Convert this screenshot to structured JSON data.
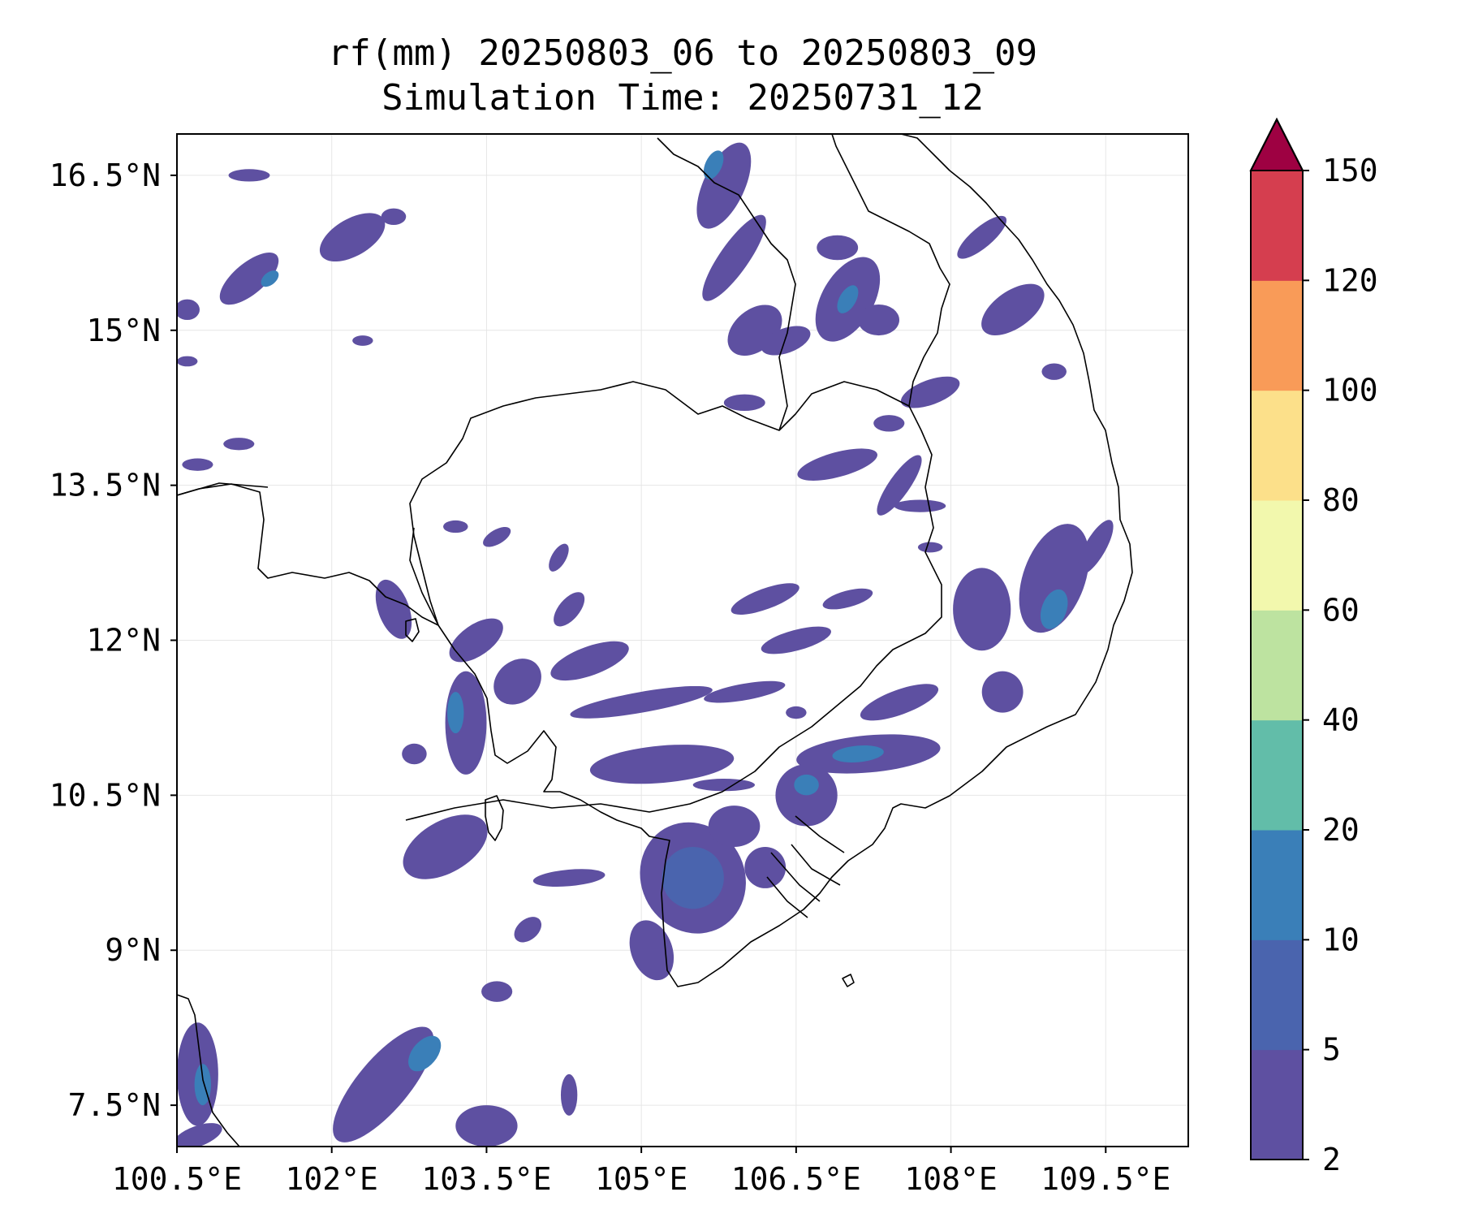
{
  "title": {
    "line1": "rf(mm) 20250803_06 to 20250803_09",
    "line2": "Simulation Time: 20250731_12"
  },
  "map": {
    "region": "Southern Indochina (Cambodia, southern Vietnam, Gulf of Thailand)",
    "extent": {
      "lon": [
        100.5,
        110.3
      ],
      "lat": [
        7.1,
        16.9
      ]
    },
    "x_ticks": [
      {
        "value": 100.5,
        "label": "100.5°E"
      },
      {
        "value": 102.0,
        "label": "102°E"
      },
      {
        "value": 103.5,
        "label": "103.5°E"
      },
      {
        "value": 105.0,
        "label": "105°E"
      },
      {
        "value": 106.5,
        "label": "106.5°E"
      },
      {
        "value": 108.0,
        "label": "108°E"
      },
      {
        "value": 109.5,
        "label": "109.5°E"
      }
    ],
    "y_ticks": [
      {
        "value": 7.5,
        "label": "7.5°N"
      },
      {
        "value": 9.0,
        "label": "9°N"
      },
      {
        "value": 10.5,
        "label": "10.5°N"
      },
      {
        "value": 12.0,
        "label": "12°N"
      },
      {
        "value": 13.5,
        "label": "13.5°N"
      },
      {
        "value": 15.0,
        "label": "15°N"
      },
      {
        "value": 16.5,
        "label": "16.5°N"
      }
    ],
    "grid": true,
    "coastline_color": "#000000",
    "blobs": [
      {
        "lon": 102.2,
        "lat": 15.9,
        "rx": 0.35,
        "ry": 0.18,
        "rot": -30,
        "level": 1
      },
      {
        "lon": 102.6,
        "lat": 16.1,
        "rx": 0.12,
        "ry": 0.08,
        "rot": 0,
        "level": 1
      },
      {
        "lon": 101.2,
        "lat": 15.5,
        "rx": 0.35,
        "ry": 0.15,
        "rot": -40,
        "level": 1
      },
      {
        "lon": 101.4,
        "lat": 15.5,
        "rx": 0.1,
        "ry": 0.06,
        "rot": -40,
        "level": 3
      },
      {
        "lon": 101.2,
        "lat": 16.5,
        "rx": 0.2,
        "ry": 0.06,
        "rot": 0,
        "level": 1
      },
      {
        "lon": 100.6,
        "lat": 15.2,
        "rx": 0.12,
        "ry": 0.1,
        "rot": 0,
        "level": 1
      },
      {
        "lon": 100.6,
        "lat": 14.7,
        "rx": 0.1,
        "ry": 0.05,
        "rot": 0,
        "level": 1
      },
      {
        "lon": 100.7,
        "lat": 13.7,
        "rx": 0.15,
        "ry": 0.06,
        "rot": 0,
        "level": 1
      },
      {
        "lon": 101.1,
        "lat": 13.9,
        "rx": 0.15,
        "ry": 0.06,
        "rot": 0,
        "level": 1
      },
      {
        "lon": 102.3,
        "lat": 14.9,
        "rx": 0.1,
        "ry": 0.05,
        "rot": 0,
        "level": 1
      },
      {
        "lon": 105.8,
        "lat": 16.4,
        "rx": 0.45,
        "ry": 0.2,
        "rot": -65,
        "level": 1
      },
      {
        "lon": 105.7,
        "lat": 16.6,
        "rx": 0.15,
        "ry": 0.08,
        "rot": -65,
        "level": 3
      },
      {
        "lon": 105.9,
        "lat": 15.7,
        "rx": 0.5,
        "ry": 0.14,
        "rot": -55,
        "level": 1
      },
      {
        "lon": 106.1,
        "lat": 15.0,
        "rx": 0.3,
        "ry": 0.2,
        "rot": -40,
        "level": 1
      },
      {
        "lon": 106.4,
        "lat": 14.9,
        "rx": 0.25,
        "ry": 0.12,
        "rot": -20,
        "level": 1
      },
      {
        "lon": 107.0,
        "lat": 15.3,
        "rx": 0.45,
        "ry": 0.25,
        "rot": -60,
        "level": 1
      },
      {
        "lon": 107.0,
        "lat": 15.3,
        "rx": 0.15,
        "ry": 0.08,
        "rot": -60,
        "level": 3
      },
      {
        "lon": 107.3,
        "lat": 15.1,
        "rx": 0.2,
        "ry": 0.15,
        "rot": 0,
        "level": 1
      },
      {
        "lon": 106.9,
        "lat": 15.8,
        "rx": 0.2,
        "ry": 0.12,
        "rot": 0,
        "level": 1
      },
      {
        "lon": 108.3,
        "lat": 15.9,
        "rx": 0.3,
        "ry": 0.1,
        "rot": -40,
        "level": 1
      },
      {
        "lon": 108.6,
        "lat": 15.2,
        "rx": 0.35,
        "ry": 0.18,
        "rot": -35,
        "level": 1
      },
      {
        "lon": 109.0,
        "lat": 14.6,
        "rx": 0.12,
        "ry": 0.08,
        "rot": 0,
        "level": 1
      },
      {
        "lon": 107.8,
        "lat": 14.4,
        "rx": 0.3,
        "ry": 0.12,
        "rot": -20,
        "level": 1
      },
      {
        "lon": 107.4,
        "lat": 14.1,
        "rx": 0.15,
        "ry": 0.08,
        "rot": 0,
        "level": 1
      },
      {
        "lon": 106.0,
        "lat": 14.3,
        "rx": 0.2,
        "ry": 0.08,
        "rot": 0,
        "level": 1
      },
      {
        "lon": 106.9,
        "lat": 13.7,
        "rx": 0.4,
        "ry": 0.12,
        "rot": -15,
        "level": 1
      },
      {
        "lon": 107.5,
        "lat": 13.5,
        "rx": 0.35,
        "ry": 0.1,
        "rot": -55,
        "level": 1
      },
      {
        "lon": 107.7,
        "lat": 13.3,
        "rx": 0.25,
        "ry": 0.06,
        "rot": 0,
        "level": 1
      },
      {
        "lon": 107.8,
        "lat": 12.9,
        "rx": 0.12,
        "ry": 0.05,
        "rot": 0,
        "level": 1
      },
      {
        "lon": 109.0,
        "lat": 12.6,
        "rx": 0.3,
        "ry": 0.55,
        "rot": 20,
        "level": 1
      },
      {
        "lon": 109.0,
        "lat": 12.3,
        "rx": 0.12,
        "ry": 0.2,
        "rot": 20,
        "level": 3
      },
      {
        "lon": 109.4,
        "lat": 12.9,
        "rx": 0.1,
        "ry": 0.3,
        "rot": 30,
        "level": 1
      },
      {
        "lon": 108.3,
        "lat": 12.3,
        "rx": 0.28,
        "ry": 0.4,
        "rot": 0,
        "level": 1
      },
      {
        "lon": 108.5,
        "lat": 11.5,
        "rx": 0.2,
        "ry": 0.2,
        "rot": 0,
        "level": 1
      },
      {
        "lon": 108.8,
        "lat": 12.4,
        "rx": 0.1,
        "ry": 0.08,
        "rot": 0,
        "level": 1
      },
      {
        "lon": 107.5,
        "lat": 11.4,
        "rx": 0.4,
        "ry": 0.12,
        "rot": -20,
        "level": 1
      },
      {
        "lon": 107.2,
        "lat": 10.9,
        "rx": 0.7,
        "ry": 0.18,
        "rot": -5,
        "level": 1
      },
      {
        "lon": 107.1,
        "lat": 10.9,
        "rx": 0.25,
        "ry": 0.08,
        "rot": -5,
        "level": 3
      },
      {
        "lon": 106.6,
        "lat": 10.5,
        "rx": 0.3,
        "ry": 0.3,
        "rot": 0,
        "level": 1
      },
      {
        "lon": 106.6,
        "lat": 10.6,
        "rx": 0.12,
        "ry": 0.1,
        "rot": 0,
        "level": 3
      },
      {
        "lon": 105.2,
        "lat": 10.8,
        "rx": 0.7,
        "ry": 0.18,
        "rot": -5,
        "level": 1
      },
      {
        "lon": 105.0,
        "lat": 11.4,
        "rx": 0.7,
        "ry": 0.1,
        "rot": -10,
        "level": 1
      },
      {
        "lon": 104.5,
        "lat": 11.8,
        "rx": 0.4,
        "ry": 0.14,
        "rot": -20,
        "level": 1
      },
      {
        "lon": 103.8,
        "lat": 11.6,
        "rx": 0.25,
        "ry": 0.2,
        "rot": -40,
        "level": 1
      },
      {
        "lon": 103.4,
        "lat": 12.0,
        "rx": 0.3,
        "ry": 0.15,
        "rot": -35,
        "level": 1
      },
      {
        "lon": 104.3,
        "lat": 12.3,
        "rx": 0.2,
        "ry": 0.1,
        "rot": -50,
        "level": 1
      },
      {
        "lon": 104.2,
        "lat": 12.8,
        "rx": 0.15,
        "ry": 0.07,
        "rot": -60,
        "level": 1
      },
      {
        "lon": 103.6,
        "lat": 13.0,
        "rx": 0.15,
        "ry": 0.07,
        "rot": -30,
        "level": 1
      },
      {
        "lon": 103.2,
        "lat": 13.1,
        "rx": 0.12,
        "ry": 0.06,
        "rot": 0,
        "level": 1
      },
      {
        "lon": 106.2,
        "lat": 12.4,
        "rx": 0.35,
        "ry": 0.1,
        "rot": -20,
        "level": 1
      },
      {
        "lon": 106.5,
        "lat": 12.0,
        "rx": 0.35,
        "ry": 0.1,
        "rot": -15,
        "level": 1
      },
      {
        "lon": 107.0,
        "lat": 12.4,
        "rx": 0.25,
        "ry": 0.08,
        "rot": -15,
        "level": 1
      },
      {
        "lon": 106.0,
        "lat": 11.5,
        "rx": 0.4,
        "ry": 0.08,
        "rot": -10,
        "level": 1
      },
      {
        "lon": 106.5,
        "lat": 11.3,
        "rx": 0.1,
        "ry": 0.06,
        "rot": 0,
        "level": 1
      },
      {
        "lon": 103.3,
        "lat": 11.2,
        "rx": 0.2,
        "ry": 0.5,
        "rot": 0,
        "level": 1
      },
      {
        "lon": 103.2,
        "lat": 11.3,
        "rx": 0.08,
        "ry": 0.2,
        "rot": 0,
        "level": 3
      },
      {
        "lon": 102.8,
        "lat": 10.9,
        "rx": 0.12,
        "ry": 0.1,
        "rot": 0,
        "level": 1
      },
      {
        "lon": 102.6,
        "lat": 12.3,
        "rx": 0.15,
        "ry": 0.3,
        "rot": -20,
        "level": 1
      },
      {
        "lon": 103.1,
        "lat": 10.0,
        "rx": 0.45,
        "ry": 0.25,
        "rot": -30,
        "level": 1
      },
      {
        "lon": 104.3,
        "lat": 9.7,
        "rx": 0.35,
        "ry": 0.08,
        "rot": -5,
        "level": 1
      },
      {
        "lon": 103.9,
        "lat": 9.2,
        "rx": 0.15,
        "ry": 0.1,
        "rot": -40,
        "level": 1
      },
      {
        "lon": 103.6,
        "lat": 8.6,
        "rx": 0.15,
        "ry": 0.1,
        "rot": 0,
        "level": 1
      },
      {
        "lon": 105.5,
        "lat": 9.7,
        "rx": 0.5,
        "ry": 0.55,
        "rot": -30,
        "level": 1
      },
      {
        "lon": 105.5,
        "lat": 9.7,
        "rx": 0.3,
        "ry": 0.3,
        "rot": -30,
        "level": 2
      },
      {
        "lon": 105.1,
        "lat": 9.0,
        "rx": 0.2,
        "ry": 0.3,
        "rot": -20,
        "level": 1
      },
      {
        "lon": 105.9,
        "lat": 10.2,
        "rx": 0.25,
        "ry": 0.2,
        "rot": 0,
        "level": 1
      },
      {
        "lon": 106.2,
        "lat": 9.8,
        "rx": 0.2,
        "ry": 0.2,
        "rot": 0,
        "level": 1
      },
      {
        "lon": 105.8,
        "lat": 10.6,
        "rx": 0.3,
        "ry": 0.06,
        "rot": 0,
        "level": 1
      },
      {
        "lon": 102.5,
        "lat": 7.7,
        "rx": 0.7,
        "ry": 0.25,
        "rot": -50,
        "level": 1
      },
      {
        "lon": 102.9,
        "lat": 8.0,
        "rx": 0.2,
        "ry": 0.12,
        "rot": -50,
        "level": 3
      },
      {
        "lon": 103.5,
        "lat": 7.3,
        "rx": 0.3,
        "ry": 0.2,
        "rot": 0,
        "level": 1
      },
      {
        "lon": 104.3,
        "lat": 7.6,
        "rx": 0.08,
        "ry": 0.2,
        "rot": 0,
        "level": 1
      },
      {
        "lon": 100.7,
        "lat": 7.8,
        "rx": 0.2,
        "ry": 0.5,
        "rot": 0,
        "level": 1
      },
      {
        "lon": 100.75,
        "lat": 7.7,
        "rx": 0.08,
        "ry": 0.2,
        "rot": 0,
        "level": 3
      },
      {
        "lon": 100.7,
        "lat": 7.2,
        "rx": 0.25,
        "ry": 0.1,
        "rot": -20,
        "level": 1
      }
    ]
  },
  "colorbar": {
    "levels": [
      "2",
      "5",
      "10",
      "20",
      "40",
      "60",
      "80",
      "100",
      "120",
      "150"
    ],
    "colors": [
      "#5e50a1",
      "#4a64ae",
      "#3a7fb8",
      "#62bda9",
      "#bde3a0",
      "#f2f8ad",
      "#fce08a",
      "#f99b58",
      "#d53e4f"
    ],
    "extend_color": "#9e0142"
  }
}
